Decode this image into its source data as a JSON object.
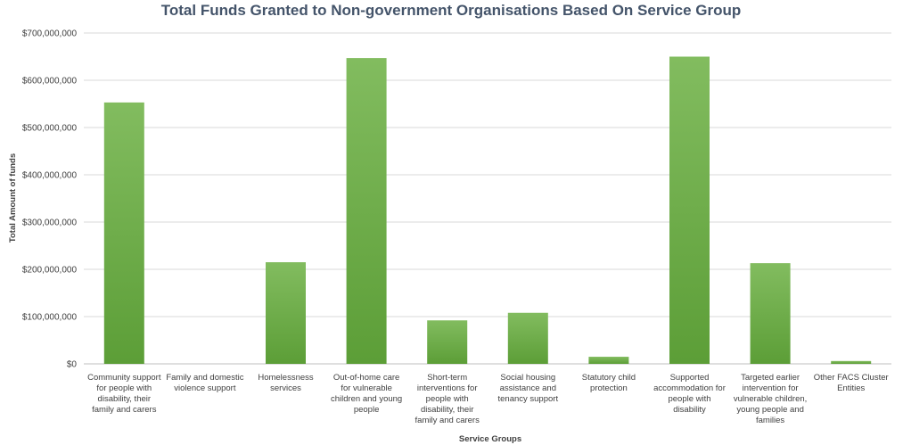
{
  "chart_data": {
    "type": "bar",
    "title": "Total Funds Granted to Non-government Organisations Based On Service Group",
    "xlabel": "Service Groups",
    "ylabel": "Total Amount of funds",
    "ylim": [
      0,
      700000000
    ],
    "yticks": [
      0,
      100000000,
      200000000,
      300000000,
      400000000,
      500000000,
      600000000,
      700000000
    ],
    "ytick_labels": [
      "$0",
      "$100,000,000",
      "$200,000,000",
      "$300,000,000",
      "$400,000,000",
      "$500,000,000",
      "$600,000,000",
      "$700,000,000"
    ],
    "grid": true,
    "legend": "none",
    "categories": [
      [
        "Community support",
        "for people with",
        "disability, their",
        "family and carers"
      ],
      [
        "Family and domestic",
        "violence support"
      ],
      [
        "Homelessness",
        "services"
      ],
      [
        "Out-of-home care",
        "for vulnerable",
        "children and young",
        "people"
      ],
      [
        "Short-term",
        "interventions for",
        "people with",
        "disability, their",
        "family and carers"
      ],
      [
        "Social housing",
        "assistance and",
        "tenancy support"
      ],
      [
        "Statutory child",
        "protection"
      ],
      [
        "Supported",
        "accommodation for",
        "people with",
        "disability"
      ],
      [
        "Targeted earlier",
        "intervention for",
        "vulnerable children,",
        "young people and",
        "families"
      ],
      [
        "Other FACS Cluster",
        "Entities"
      ]
    ],
    "values": [
      553000000,
      0,
      215000000,
      647000000,
      92000000,
      108000000,
      15000000,
      650000000,
      213000000,
      6000000
    ],
    "colors": {
      "bar_top": "#82bc5f",
      "bar_bottom": "#5c9e37"
    }
  }
}
